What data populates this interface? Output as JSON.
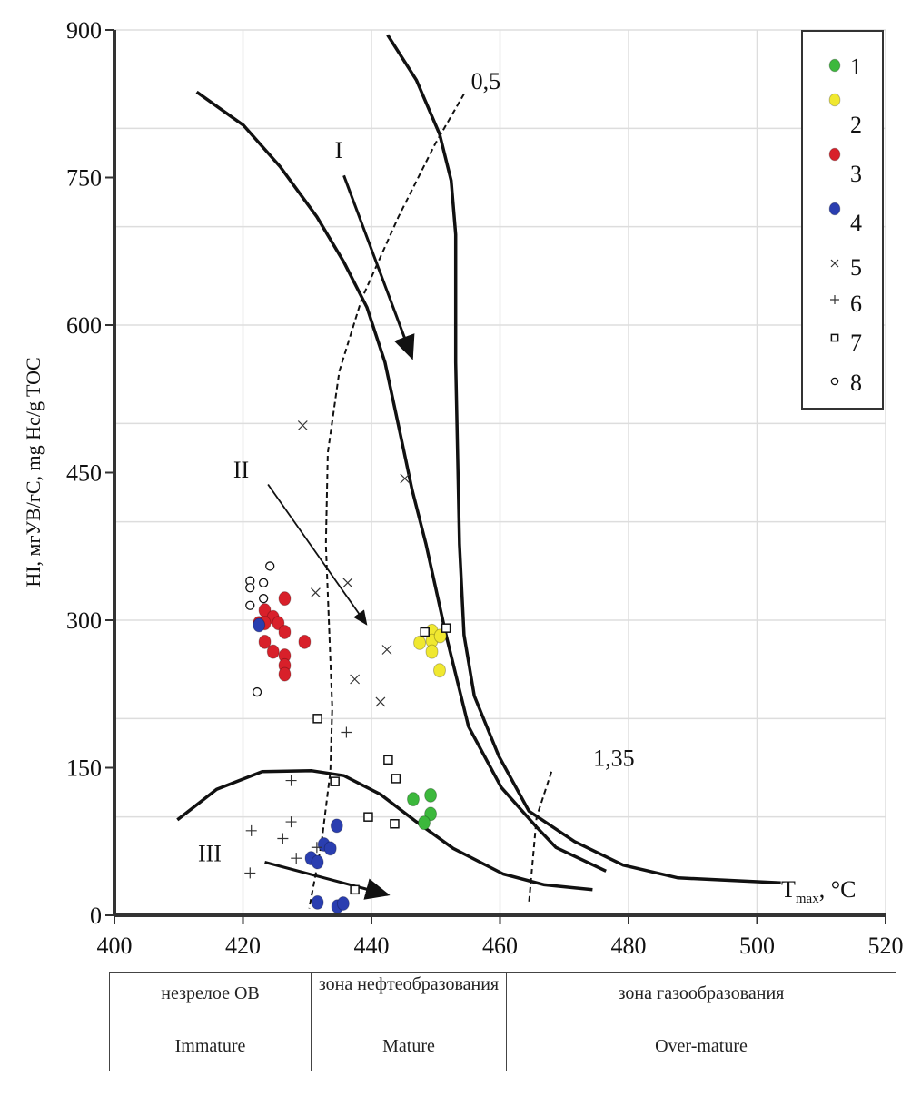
{
  "chart_data": {
    "type": "scatter",
    "title": "",
    "xlabel": {
      "main": "T",
      "sub": "max",
      "rest": ", °C"
    },
    "ylabel": "HI, мгУВ/гС, mg Hc/g TOC",
    "xlim": [
      400,
      520
    ],
    "ylim": [
      0,
      900
    ],
    "xticks": [
      "400",
      "420",
      "440",
      "460",
      "480",
      "500",
      "520"
    ],
    "yticks": [
      "0",
      "150",
      "300",
      "450",
      "600",
      "750",
      "900"
    ],
    "grid": true,
    "legend_position": "top-right",
    "series": [
      {
        "name": "1",
        "marker": "filled-circle",
        "color": "#3cb83c",
        "points": [
          [
            446.5,
            118
          ],
          [
            449.2,
            122
          ],
          [
            449.2,
            103
          ],
          [
            448.2,
            94
          ]
        ]
      },
      {
        "name": "2",
        "marker": "filled-circle",
        "color": "#f0e830",
        "points": [
          [
            447.5,
            277
          ],
          [
            449.4,
            289
          ],
          [
            449.4,
            279
          ],
          [
            450.7,
            284
          ],
          [
            449.4,
            268
          ],
          [
            450.6,
            249
          ]
        ]
      },
      {
        "name": "3",
        "marker": "filled-circle",
        "color": "#d8202a",
        "points": [
          [
            426.5,
            322
          ],
          [
            423.4,
            310
          ],
          [
            424.7,
            303
          ],
          [
            422.5,
            297
          ],
          [
            423.4,
            297
          ],
          [
            425.5,
            297
          ],
          [
            426.5,
            288
          ],
          [
            423.4,
            278
          ],
          [
            429.6,
            278
          ],
          [
            424.7,
            268
          ],
          [
            426.5,
            264
          ],
          [
            426.5,
            254
          ],
          [
            426.5,
            245
          ]
        ]
      },
      {
        "name": "4",
        "marker": "filled-circle",
        "color": "#2a3eb0",
        "points": [
          [
            434.6,
            91
          ],
          [
            432.6,
            72
          ],
          [
            433.6,
            68
          ],
          [
            430.6,
            58
          ],
          [
            431.6,
            54
          ],
          [
            431.6,
            13
          ],
          [
            434.7,
            9
          ],
          [
            435.6,
            12
          ],
          [
            422.5,
            295
          ]
        ]
      },
      {
        "name": "5",
        "marker": "x",
        "color": "#333333",
        "points": [
          [
            429.3,
            498
          ],
          [
            445.2,
            444
          ],
          [
            431.3,
            328
          ],
          [
            436.3,
            338
          ],
          [
            442.4,
            270
          ],
          [
            437.4,
            240
          ],
          [
            441.4,
            217
          ]
        ]
      },
      {
        "name": "6",
        "marker": "plus",
        "color": "#333333",
        "points": [
          [
            436.1,
            186
          ],
          [
            427.5,
            137
          ],
          [
            427.5,
            95
          ],
          [
            421.3,
            86
          ],
          [
            426.2,
            78
          ],
          [
            428.3,
            58
          ],
          [
            421.1,
            43
          ],
          [
            431.5,
            69
          ]
        ]
      },
      {
        "name": "7",
        "marker": "open-square",
        "color": "#111111",
        "points": [
          [
            448.3,
            288
          ],
          [
            451.6,
            292
          ],
          [
            431.6,
            200
          ],
          [
            442.6,
            158
          ],
          [
            443.8,
            139
          ],
          [
            434.3,
            136
          ],
          [
            439.5,
            100
          ],
          [
            443.6,
            93
          ],
          [
            437.4,
            26
          ]
        ]
      },
      {
        "name": "8",
        "marker": "open-circle",
        "color": "#111111",
        "points": [
          [
            424.2,
            355
          ],
          [
            421.1,
            340
          ],
          [
            421.1,
            333
          ],
          [
            423.2,
            338
          ],
          [
            423.2,
            322
          ],
          [
            421.1,
            315
          ],
          [
            422.2,
            227
          ]
        ]
      }
    ],
    "curves": [
      {
        "style": "solid",
        "points": [
          [
            412.8,
            837
          ],
          [
            420.1,
            803
          ],
          [
            425.8,
            761
          ],
          [
            431.5,
            710
          ],
          [
            435.7,
            664
          ],
          [
            439.3,
            618
          ],
          [
            442.1,
            562
          ],
          [
            444.2,
            498
          ],
          [
            446.3,
            433
          ],
          [
            448.5,
            377
          ],
          [
            451.6,
            285
          ],
          [
            455.1,
            192
          ],
          [
            460.2,
            130
          ],
          [
            465.5,
            91
          ],
          [
            468.7,
            69
          ],
          [
            476.5,
            45
          ]
        ]
      },
      {
        "style": "solid",
        "points": [
          [
            442.5,
            895
          ],
          [
            447,
            849
          ],
          [
            450.6,
            794
          ],
          [
            452.4,
            747
          ],
          [
            453.1,
            692
          ],
          [
            453.1,
            562
          ],
          [
            453.7,
            377
          ],
          [
            454.4,
            285
          ],
          [
            456,
            223
          ],
          [
            459.8,
            162
          ],
          [
            464.5,
            106
          ],
          [
            471.6,
            75
          ],
          [
            479.2,
            51
          ],
          [
            487.7,
            38
          ],
          [
            503.7,
            33
          ]
        ]
      },
      {
        "style": "solid",
        "points": [
          [
            409.8,
            97
          ],
          [
            415.9,
            128
          ],
          [
            423,
            146
          ],
          [
            430.7,
            147
          ],
          [
            435.7,
            142
          ],
          [
            441.4,
            123
          ],
          [
            447,
            95
          ],
          [
            452.7,
            68
          ],
          [
            460.5,
            42
          ],
          [
            466.9,
            31
          ],
          [
            474.4,
            26
          ]
        ]
      },
      {
        "style": "dashed",
        "label": "0,5",
        "points": [
          [
            454.4,
            835
          ],
          [
            449.9,
            784
          ],
          [
            444.2,
            710
          ],
          [
            438.5,
            627
          ],
          [
            435,
            553
          ],
          [
            433.2,
            470
          ],
          [
            432.9,
            377
          ],
          [
            433.9,
            211
          ],
          [
            433.6,
            146
          ],
          [
            432.2,
            72
          ],
          [
            430.3,
            7
          ]
        ]
      },
      {
        "style": "dashed",
        "label": "1,35",
        "points": [
          [
            468,
            146
          ],
          [
            465.7,
            100
          ],
          [
            464.5,
            12
          ]
        ]
      }
    ],
    "arrows": [
      {
        "label": "I",
        "from": [
          435.7,
          752
        ],
        "to": [
          446.3,
          567
        ]
      },
      {
        "label": "II",
        "from": [
          423.9,
          438
        ],
        "to": [
          439.2,
          296
        ]
      },
      {
        "label": "III",
        "from": [
          423.4,
          54
        ],
        "to": [
          442.5,
          21
        ]
      }
    ],
    "annotations": [
      {
        "text": "I",
        "at": [
          434.3,
          770
        ]
      },
      {
        "text": "II",
        "at": [
          418.5,
          445
        ]
      },
      {
        "text": "III",
        "at": [
          413,
          55
        ]
      },
      {
        "text": "0,5",
        "at": [
          455.5,
          840
        ]
      },
      {
        "text": "1,35",
        "at": [
          474.5,
          152
        ]
      }
    ]
  },
  "zones": [
    {
      "ru": "незрелое ОВ",
      "en": "Immature"
    },
    {
      "ru": "зона нефтеобразования",
      "en": "Mature"
    },
    {
      "ru": "зона газообразования",
      "en": "Over-mature"
    }
  ]
}
